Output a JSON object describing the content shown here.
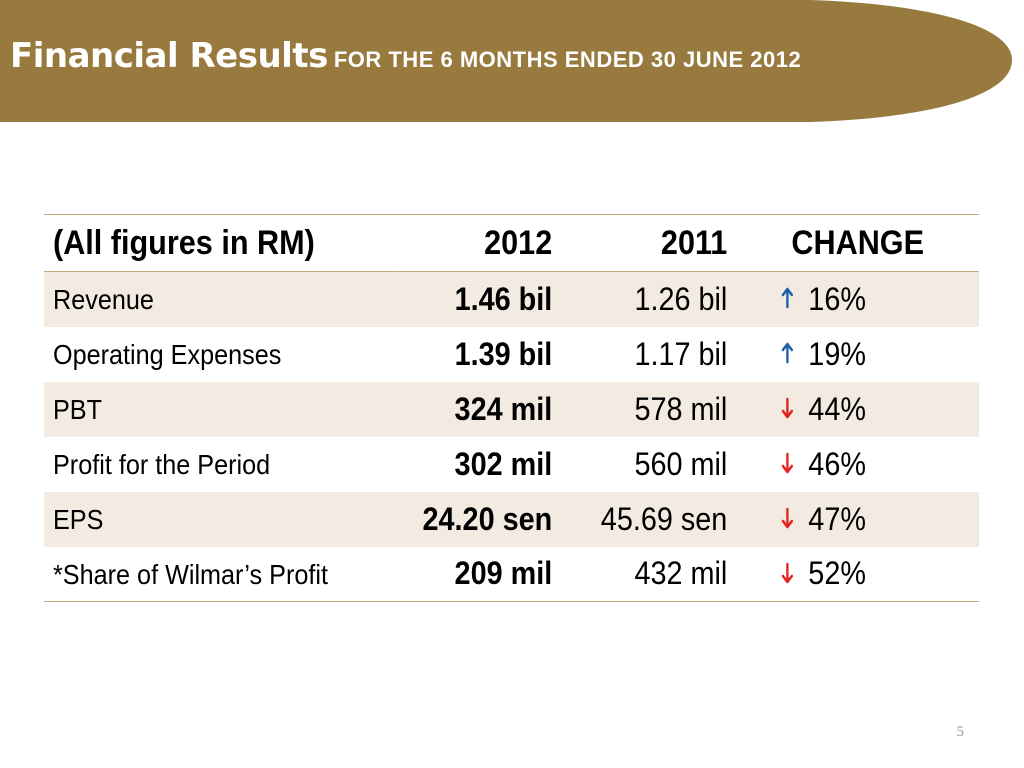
{
  "header": {
    "title": "Financial Results",
    "subtitle": "FOR THE 6 MONTHS ENDED 30 JUNE 2012",
    "banner_color": "#987a3f"
  },
  "table": {
    "columns": [
      "(All figures in RM)",
      "2012",
      "2011",
      "CHANGE"
    ],
    "rows": [
      {
        "label": "Revenue",
        "y2012": "1.46 bil",
        "y2011": "1.26 bil",
        "direction": "up",
        "change": "16%"
      },
      {
        "label": "Operating Expenses",
        "y2012": "1.39 bil",
        "y2011": "1.17 bil",
        "direction": "up",
        "change": "19%"
      },
      {
        "label": "PBT",
        "y2012": "324 mil",
        "y2011": "578 mil",
        "direction": "down",
        "change": "44%"
      },
      {
        "label": "Profit for the Period",
        "y2012": "302 mil",
        "y2011": "560 mil",
        "direction": "down",
        "change": "46%"
      },
      {
        "label": "EPS",
        "y2012": "24.20 sen",
        "y2011": "45.69 sen",
        "direction": "down",
        "change": "47%"
      },
      {
        "label": "*Share of Wilmar’s Profit",
        "y2012": "209 mil",
        "y2011": "432 mil",
        "direction": "down",
        "change": "52%"
      }
    ],
    "up_arrow_color": "#1f5fa8",
    "down_arrow_color": "#e32222"
  },
  "footer": {
    "page_number": "5"
  }
}
